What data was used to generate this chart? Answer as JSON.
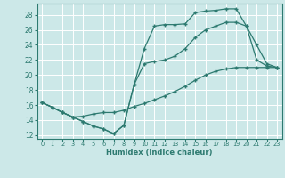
{
  "xlabel": "Humidex (Indice chaleur)",
  "bg_color": "#cce8e8",
  "grid_color": "#b8d8d8",
  "line_color": "#2d7a70",
  "xlim": [
    -0.5,
    23.5
  ],
  "ylim": [
    11.5,
    29.5
  ],
  "xticks": [
    0,
    1,
    2,
    3,
    4,
    5,
    6,
    7,
    8,
    9,
    10,
    11,
    12,
    13,
    14,
    15,
    16,
    17,
    18,
    19,
    20,
    21,
    22,
    23
  ],
  "yticks": [
    12,
    14,
    16,
    18,
    20,
    22,
    24,
    26,
    28
  ],
  "line1_x": [
    0,
    1,
    2,
    3,
    4,
    5,
    6,
    7,
    8,
    9,
    10,
    11,
    12,
    13,
    14,
    15,
    16,
    17,
    18,
    19,
    20,
    21,
    22,
    23
  ],
  "line1_y": [
    16.3,
    15.7,
    15.0,
    14.4,
    13.8,
    13.2,
    12.8,
    12.2,
    13.3,
    18.7,
    23.5,
    26.5,
    26.7,
    26.7,
    26.8,
    28.3,
    28.5,
    28.6,
    28.8,
    28.8,
    26.5,
    22.0,
    21.2,
    21.0
  ],
  "line2_x": [
    0,
    1,
    2,
    3,
    4,
    5,
    6,
    7,
    8,
    9,
    10,
    11,
    12,
    13,
    14,
    15,
    16,
    17,
    18,
    19,
    20,
    21,
    22,
    23
  ],
  "line2_y": [
    16.3,
    15.7,
    15.0,
    14.4,
    13.8,
    13.2,
    12.8,
    12.2,
    13.3,
    18.7,
    21.5,
    21.8,
    22.0,
    22.5,
    23.5,
    25.0,
    26.0,
    26.5,
    27.0,
    27.0,
    26.5,
    24.0,
    21.5,
    21.0
  ],
  "line3_x": [
    0,
    1,
    2,
    3,
    4,
    5,
    6,
    7,
    8,
    9,
    10,
    11,
    12,
    13,
    14,
    15,
    16,
    17,
    18,
    19,
    20,
    21,
    22,
    23
  ],
  "line3_y": [
    16.3,
    15.7,
    15.0,
    14.4,
    14.5,
    14.8,
    15.0,
    15.0,
    15.3,
    15.8,
    16.2,
    16.7,
    17.2,
    17.8,
    18.5,
    19.3,
    20.0,
    20.5,
    20.8,
    21.0,
    21.0,
    21.0,
    21.0,
    21.0
  ]
}
